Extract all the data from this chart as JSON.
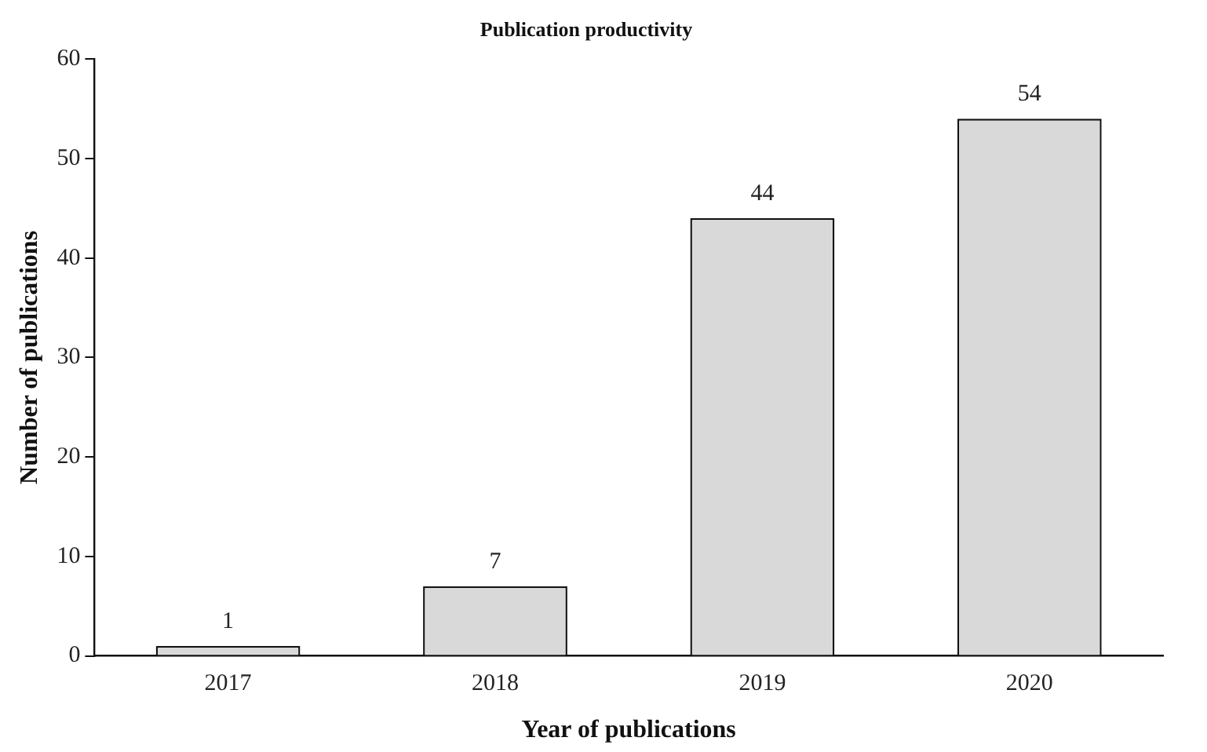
{
  "chart_data": {
    "type": "bar",
    "title": "Publication productivity",
    "xlabel": "Year of publications",
    "ylabel": "Number of publications",
    "categories": [
      "2017",
      "2018",
      "2019",
      "2020"
    ],
    "values": [
      1,
      7,
      44,
      54
    ],
    "color": "#d9d9d9",
    "ylim": [
      0,
      60
    ],
    "yticks": [
      0,
      10,
      20,
      30,
      40,
      50,
      60
    ],
    "grid": false,
    "legend": false,
    "data_labels": true
  }
}
